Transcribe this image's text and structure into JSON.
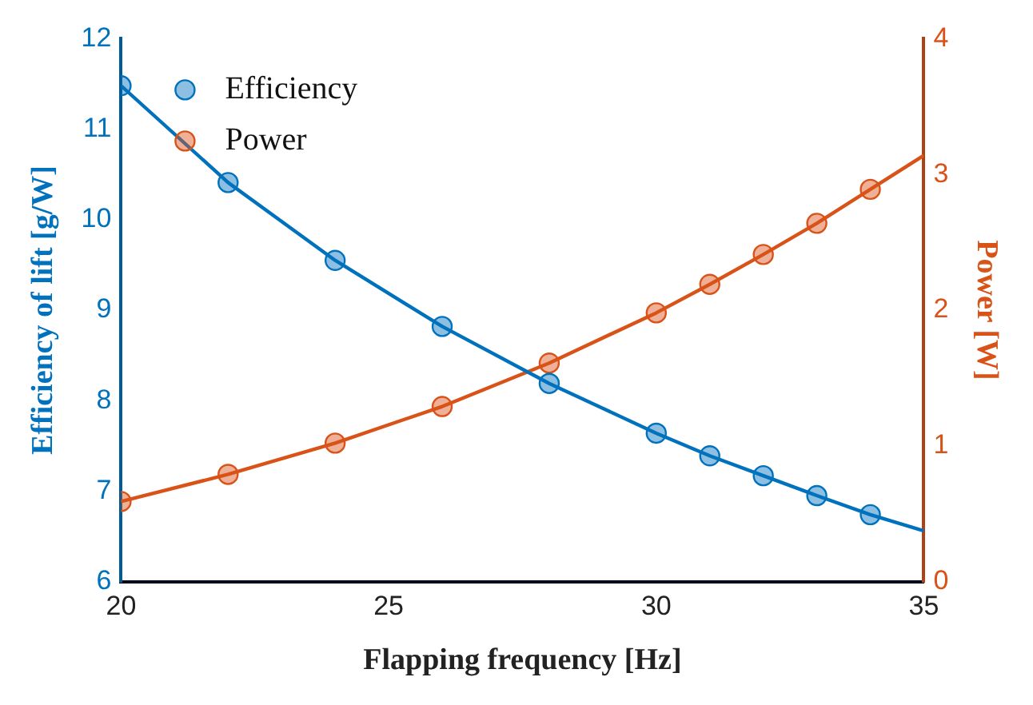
{
  "chart_data": {
    "type": "line",
    "xlabel": "Flapping frequency [Hz]",
    "ylabel": "Efficiency of lift [g/W]",
    "y2label": "Power [W]",
    "xlim": [
      20,
      35
    ],
    "xticks": [
      20,
      25,
      30,
      35
    ],
    "ylim": [
      6,
      12
    ],
    "yticks": [
      6,
      7,
      8,
      9,
      10,
      11,
      12
    ],
    "y2lim": [
      0,
      4
    ],
    "y2ticks": [
      0,
      1,
      2,
      3,
      4
    ],
    "grid": false,
    "legend": "top left",
    "series": [
      {
        "name": "Efficiency",
        "type": "scatter",
        "marker": "circle",
        "color": "#0072bd",
        "axis": "y",
        "x": [
          20,
          22,
          24,
          26,
          28,
          30,
          31,
          32,
          33,
          34
        ],
        "values": [
          11.48,
          10.41,
          9.55,
          8.82,
          8.19,
          7.64,
          7.39,
          7.17,
          6.95,
          6.74
        ]
      },
      {
        "name": "Power",
        "type": "scatter",
        "marker": "circle",
        "color": "#d95319",
        "axis": "y2",
        "x": [
          20,
          22,
          24,
          26,
          28,
          30,
          31,
          32,
          33,
          34
        ],
        "values": [
          0.59,
          0.79,
          1.02,
          1.29,
          1.61,
          1.98,
          2.19,
          2.41,
          2.64,
          2.89
        ]
      },
      {
        "type": "line",
        "marker": "none",
        "color": "#0072bd",
        "axis": "y",
        "x": [
          20,
          22,
          24,
          26,
          28,
          30,
          31,
          32,
          33,
          34,
          35
        ],
        "values": [
          11.48,
          10.41,
          9.55,
          8.82,
          8.19,
          7.64,
          7.39,
          7.17,
          6.95,
          6.74,
          6.56
        ]
      },
      {
        "type": "line",
        "marker": "none",
        "color": "#d95319",
        "axis": "y2",
        "x": [
          20,
          22,
          24,
          26,
          28,
          30,
          31,
          32,
          33,
          34,
          35
        ],
        "values": [
          0.59,
          0.79,
          1.02,
          1.29,
          1.61,
          1.98,
          2.19,
          2.41,
          2.64,
          2.89,
          3.14
        ]
      }
    ]
  }
}
